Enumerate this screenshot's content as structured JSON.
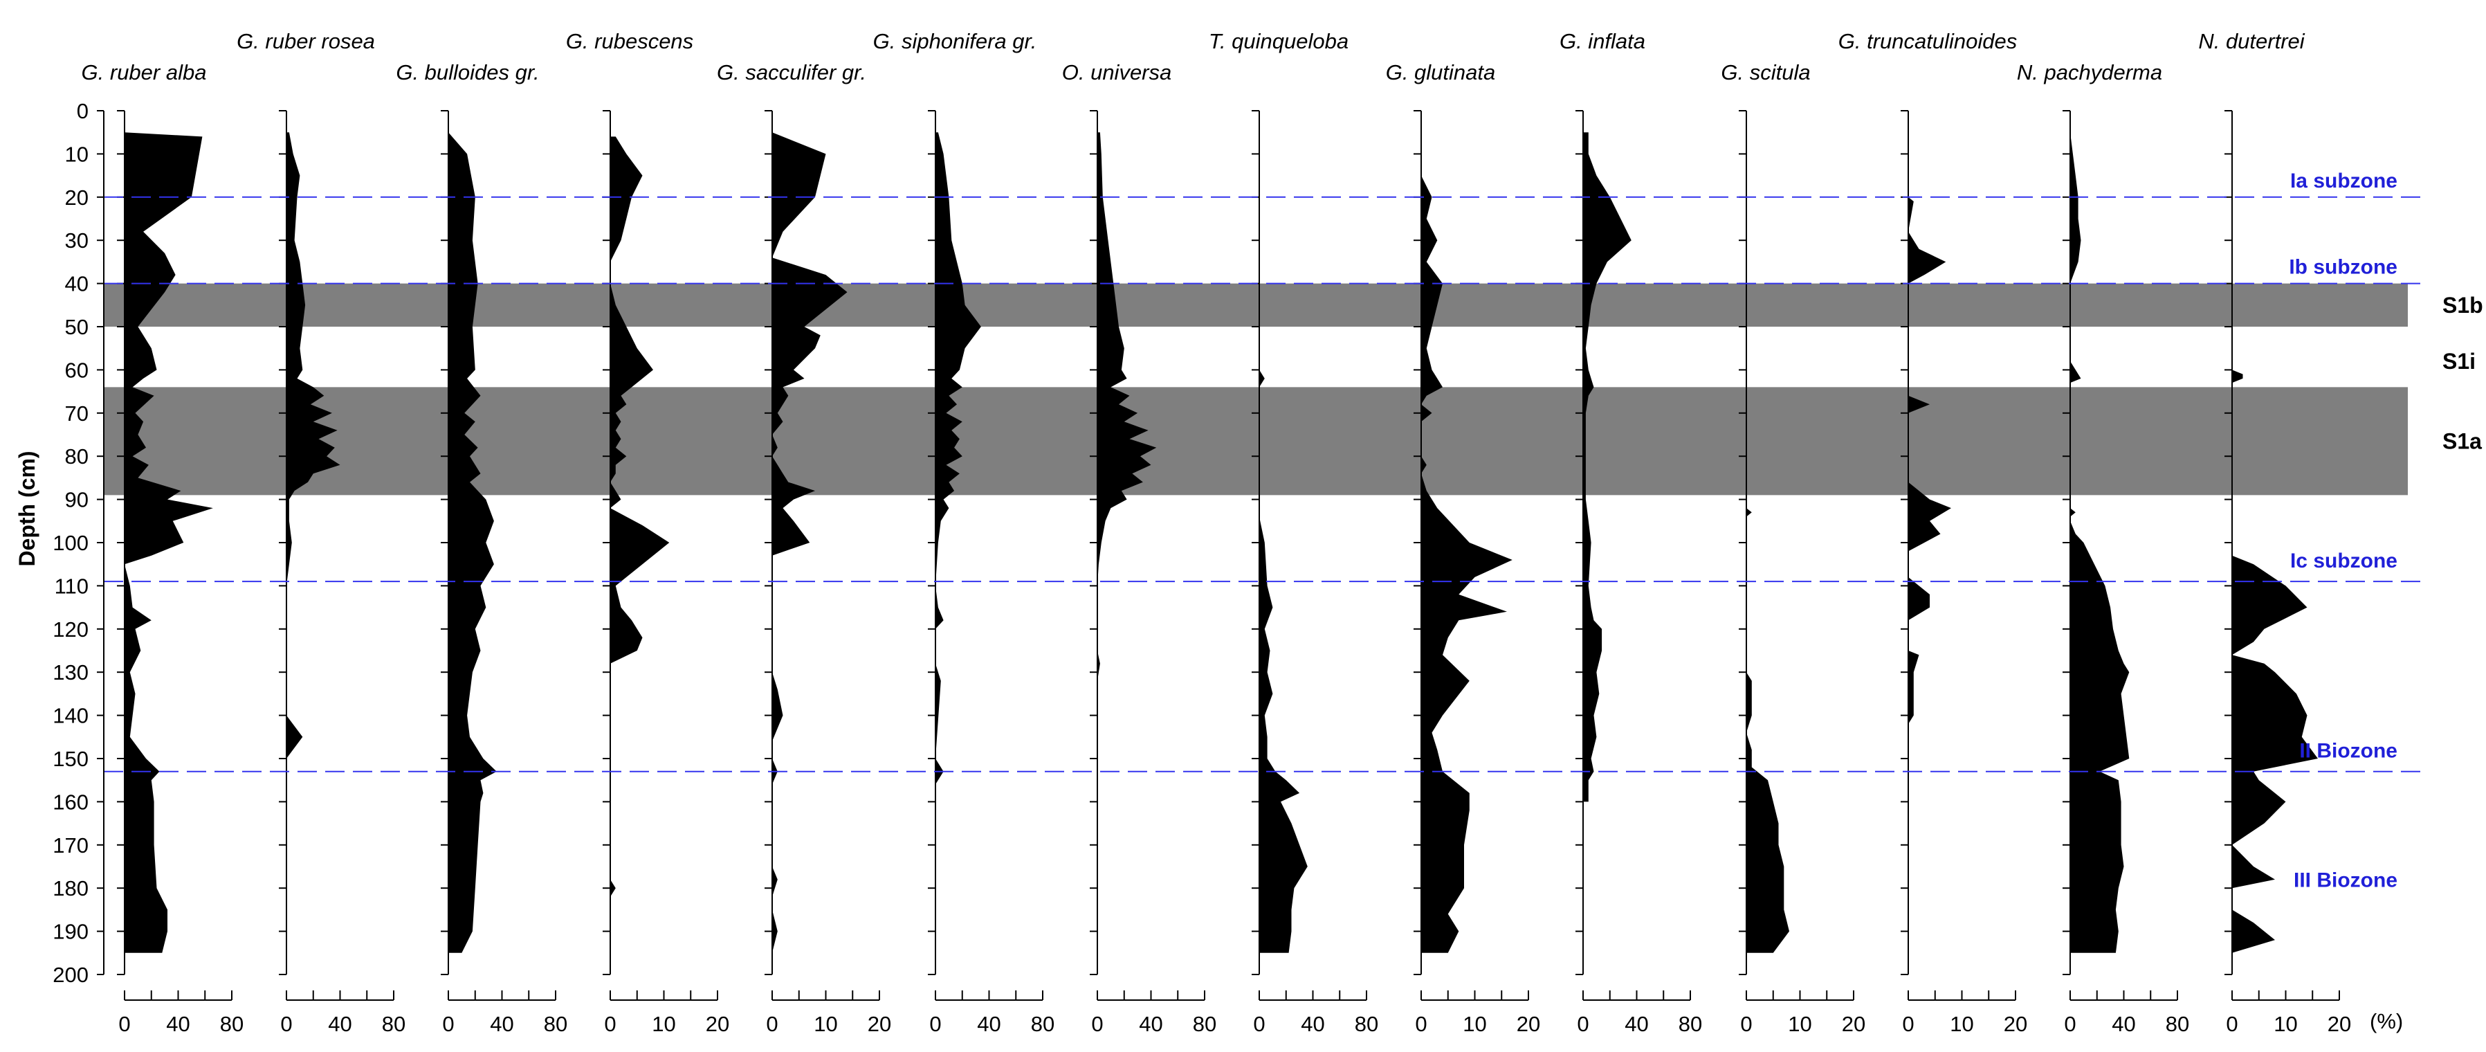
{
  "chart_data": {
    "type": "area",
    "title": "",
    "ylabel": "Depth (cm)",
    "ylim": [
      0,
      200
    ],
    "yticks": [
      "0",
      "10",
      "20",
      "30",
      "40",
      "50",
      "60",
      "70",
      "80",
      "90",
      "100",
      "110",
      "120",
      "130",
      "140",
      "150",
      "160",
      "170",
      "180",
      "190",
      "200"
    ],
    "unit_label": "(%)",
    "colors": {
      "fill": "#000000",
      "sapropel": "#7f7f7f",
      "zone_line": "#3333ee",
      "zone_text": "#2020d8"
    },
    "sapropel_bands": [
      {
        "name": "S1b",
        "from": 40,
        "to": 50
      },
      {
        "name": "S1a",
        "from": 64,
        "to": 89
      }
    ],
    "unshaded_labels": [
      {
        "name": "S1i",
        "depth": 58
      }
    ],
    "zone_boundaries": [
      20,
      40,
      109,
      153
    ],
    "zone_labels": [
      {
        "name": "Ia subzone",
        "depth": 16
      },
      {
        "name": "Ib subzone",
        "depth": 36
      },
      {
        "name": "Ic subzone",
        "depth": 104
      },
      {
        "name": "II Biozone",
        "depth": 148
      },
      {
        "name": "III Biozone",
        "depth": 178
      }
    ],
    "panels": [
      {
        "species": "G. ruber alba",
        "row": 2,
        "xmax": 80,
        "xticks": [
          "0",
          "40",
          "80"
        ],
        "depth": [
          5,
          6,
          20,
          28,
          33,
          38,
          42,
          50,
          55,
          60,
          62,
          64,
          66,
          70,
          72,
          75,
          78,
          80,
          82,
          85,
          88,
          90,
          92,
          95,
          100,
          103,
          105,
          110,
          115,
          118,
          120,
          125,
          130,
          135,
          145,
          150,
          153,
          155,
          160,
          170,
          180,
          185,
          190,
          195
        ],
        "values": [
          0,
          58,
          50,
          14,
          30,
          38,
          30,
          10,
          20,
          24,
          14,
          6,
          22,
          8,
          14,
          10,
          16,
          6,
          18,
          10,
          42,
          32,
          66,
          36,
          44,
          20,
          0,
          4,
          6,
          20,
          8,
          12,
          4,
          8,
          4,
          16,
          26,
          20,
          22,
          22,
          24,
          32,
          32,
          28
        ]
      },
      {
        "species": "G. ruber rosea",
        "row": 1,
        "xmax": 80,
        "xticks": [
          "0",
          "40",
          "80"
        ],
        "depth": [
          5,
          10,
          15,
          20,
          30,
          35,
          40,
          45,
          50,
          55,
          60,
          62,
          64,
          66,
          68,
          70,
          72,
          74,
          76,
          78,
          80,
          82,
          84,
          86,
          88,
          90,
          95,
          100,
          105,
          110,
          140,
          145,
          150
        ],
        "values": [
          2,
          5,
          10,
          8,
          6,
          10,
          12,
          14,
          12,
          10,
          12,
          8,
          20,
          28,
          18,
          34,
          20,
          38,
          24,
          36,
          30,
          40,
          20,
          16,
          6,
          2,
          2,
          4,
          2,
          0,
          0,
          12,
          0
        ]
      },
      {
        "species": "G. bulloides gr.",
        "row": 2,
        "xmax": 80,
        "xticks": [
          "0",
          "40",
          "80"
        ],
        "depth": [
          5,
          10,
          20,
          30,
          40,
          50,
          60,
          62,
          66,
          70,
          72,
          75,
          78,
          80,
          84,
          86,
          88,
          90,
          95,
          100,
          105,
          110,
          115,
          120,
          125,
          130,
          140,
          145,
          150,
          153,
          155,
          158,
          160,
          170,
          180,
          190,
          195
        ],
        "values": [
          0,
          14,
          20,
          18,
          22,
          18,
          20,
          14,
          24,
          12,
          20,
          12,
          22,
          16,
          24,
          16,
          22,
          28,
          34,
          28,
          34,
          24,
          28,
          20,
          24,
          18,
          14,
          16,
          26,
          36,
          24,
          26,
          24,
          22,
          20,
          18,
          10
        ]
      },
      {
        "species": "G. rubescens",
        "row": 1,
        "xmax": 20,
        "xticks": [
          "0",
          "10",
          "20"
        ],
        "depth": [
          6,
          10,
          15,
          20,
          25,
          30,
          35,
          40,
          45,
          50,
          55,
          60,
          62,
          64,
          66,
          68,
          70,
          72,
          74,
          76,
          78,
          80,
          82,
          84,
          86,
          88,
          90,
          92,
          94,
          96,
          100,
          105,
          110,
          115,
          118,
          122,
          125,
          128,
          130,
          178,
          180,
          182
        ],
        "values": [
          1,
          3,
          6,
          4,
          3,
          2,
          0,
          0,
          1,
          3,
          5,
          8,
          6,
          4,
          2,
          3,
          1,
          2,
          1,
          2,
          1,
          3,
          1,
          1,
          0,
          1,
          2,
          0,
          3,
          6,
          11,
          6,
          1,
          2,
          4,
          6,
          5,
          0,
          0,
          0,
          1,
          0
        ]
      },
      {
        "species": "G. sacculifer gr.",
        "row": 2,
        "xmax": 20,
        "xticks": [
          "0",
          "10",
          "20"
        ],
        "depth": [
          5,
          10,
          20,
          28,
          34,
          38,
          42,
          48,
          50,
          52,
          55,
          60,
          62,
          64,
          66,
          70,
          72,
          75,
          78,
          80,
          82,
          84,
          86,
          88,
          90,
          92,
          95,
          100,
          103,
          106,
          130,
          134,
          140,
          146,
          150,
          153,
          156,
          175,
          178,
          182,
          185,
          190,
          195
        ],
        "values": [
          0,
          10,
          8,
          2,
          0,
          10,
          14,
          8,
          6,
          9,
          8,
          4,
          6,
          2,
          3,
          1,
          2,
          0,
          1,
          0,
          1,
          2,
          3,
          8,
          4,
          2,
          4,
          7,
          0,
          0,
          0,
          1,
          2,
          0,
          0,
          1,
          0,
          0,
          1,
          0,
          0,
          1,
          0
        ]
      },
      {
        "species": "G. siphonifera gr.",
        "row": 1,
        "xmax": 80,
        "xticks": [
          "0",
          "40",
          "80"
        ],
        "depth": [
          5,
          10,
          20,
          30,
          35,
          40,
          45,
          50,
          55,
          60,
          62,
          64,
          66,
          68,
          70,
          72,
          74,
          76,
          78,
          80,
          82,
          84,
          86,
          88,
          90,
          92,
          95,
          100,
          110,
          115,
          118,
          120,
          128,
          132,
          150,
          153,
          156
        ],
        "values": [
          2,
          6,
          10,
          12,
          16,
          20,
          22,
          34,
          22,
          18,
          12,
          20,
          10,
          16,
          8,
          20,
          12,
          18,
          14,
          20,
          8,
          18,
          10,
          14,
          6,
          10,
          4,
          2,
          0,
          2,
          6,
          0,
          0,
          4,
          0,
          6,
          0
        ]
      },
      {
        "species": "O. universa",
        "row": 2,
        "xmax": 80,
        "xticks": [
          "0",
          "40",
          "80"
        ],
        "depth": [
          5,
          10,
          20,
          30,
          40,
          50,
          55,
          60,
          62,
          64,
          66,
          68,
          70,
          72,
          74,
          76,
          78,
          80,
          82,
          84,
          86,
          88,
          90,
          92,
          95,
          100,
          105,
          110,
          125,
          128,
          132
        ],
        "values": [
          2,
          3,
          4,
          8,
          12,
          16,
          20,
          18,
          22,
          10,
          24,
          16,
          30,
          20,
          38,
          24,
          44,
          32,
          40,
          26,
          34,
          18,
          22,
          10,
          6,
          3,
          1,
          0,
          0,
          2,
          0
        ]
      },
      {
        "species": "T. quinqueloba",
        "row": 1,
        "xmax": 80,
        "xticks": [
          "0",
          "40",
          "80"
        ],
        "depth": [
          60,
          62,
          64,
          94,
          100,
          110,
          115,
          120,
          125,
          130,
          135,
          140,
          145,
          150,
          153,
          155,
          158,
          160,
          165,
          170,
          175,
          180,
          185,
          190,
          195
        ],
        "values": [
          0,
          4,
          0,
          0,
          4,
          6,
          10,
          4,
          8,
          6,
          10,
          4,
          6,
          6,
          12,
          20,
          30,
          16,
          24,
          30,
          36,
          26,
          24,
          24,
          22
        ]
      },
      {
        "species": "G. glutinata",
        "row": 2,
        "xmax": 20,
        "xticks": [
          "0",
          "10",
          "20"
        ],
        "depth": [
          15,
          20,
          25,
          30,
          35,
          40,
          45,
          50,
          55,
          60,
          62,
          64,
          66,
          68,
          70,
          72,
          80,
          82,
          84,
          88,
          92,
          96,
          100,
          104,
          108,
          112,
          116,
          118,
          122,
          126,
          132,
          140,
          144,
          148,
          153,
          158,
          162,
          170,
          180,
          186,
          190,
          195
        ],
        "values": [
          0,
          2,
          1,
          3,
          1,
          4,
          3,
          2,
          1,
          2,
          3,
          4,
          1,
          0,
          2,
          0,
          0,
          1,
          0,
          1,
          3,
          6,
          9,
          17,
          10,
          7,
          16,
          7,
          5,
          4,
          9,
          4,
          2,
          3,
          4,
          9,
          9,
          8,
          8,
          5,
          7,
          5
        ]
      },
      {
        "species": "G. inflata",
        "row": 1,
        "xmax": 80,
        "xticks": [
          "0",
          "40",
          "80"
        ],
        "depth": [
          5,
          10,
          15,
          20,
          25,
          30,
          35,
          40,
          45,
          50,
          55,
          60,
          62,
          64,
          66,
          70,
          75,
          80,
          85,
          90,
          95,
          100,
          110,
          115,
          118,
          120,
          125,
          130,
          135,
          140,
          145,
          150,
          153,
          155,
          160
        ],
        "values": [
          4,
          4,
          10,
          20,
          28,
          36,
          18,
          10,
          6,
          4,
          2,
          4,
          6,
          8,
          4,
          2,
          2,
          2,
          2,
          2,
          4,
          6,
          4,
          6,
          8,
          14,
          14,
          10,
          12,
          8,
          10,
          6,
          8,
          4,
          4
        ]
      },
      {
        "species": "G. scitula",
        "row": 2,
        "xmax": 20,
        "xticks": [
          "0",
          "10",
          "20"
        ],
        "depth": [
          92,
          93,
          94,
          130,
          132,
          140,
          144,
          148,
          150,
          152,
          155,
          160,
          165,
          170,
          175,
          180,
          185,
          190,
          195
        ],
        "values": [
          0,
          1,
          0,
          0,
          1,
          1,
          0,
          1,
          1,
          1,
          4,
          5,
          6,
          6,
          7,
          7,
          7,
          8,
          5
        ]
      },
      {
        "species": "G. truncatulinoides",
        "row": 1,
        "xmax": 20,
        "xticks": [
          "0",
          "10",
          "20"
        ],
        "depth": [
          20,
          21,
          28,
          32,
          35,
          38,
          40,
          66,
          68,
          70,
          86,
          88,
          90,
          92,
          95,
          98,
          100,
          102,
          108,
          110,
          112,
          115,
          118,
          125,
          126,
          130,
          135,
          140,
          142
        ],
        "values": [
          0,
          1,
          0,
          2,
          7,
          3,
          0,
          0,
          4,
          0,
          0,
          2,
          4,
          8,
          4,
          6,
          3,
          0,
          0,
          2,
          4,
          4,
          0,
          0,
          2,
          1,
          1,
          1,
          0
        ]
      },
      {
        "species": "N. pachyderma",
        "row": 2,
        "xmax": 80,
        "xticks": [
          "0",
          "40",
          "80"
        ],
        "depth": [
          5,
          10,
          15,
          20,
          25,
          30,
          35,
          40,
          58,
          60,
          62,
          63,
          92,
          93,
          94,
          95,
          98,
          100,
          105,
          110,
          115,
          120,
          125,
          128,
          130,
          135,
          140,
          145,
          150,
          153,
          155,
          160,
          165,
          170,
          175,
          180,
          185,
          190,
          195
        ],
        "values": [
          0,
          2,
          4,
          6,
          6,
          8,
          6,
          0,
          0,
          4,
          8,
          0,
          0,
          4,
          0,
          0,
          4,
          10,
          18,
          26,
          30,
          32,
          36,
          40,
          44,
          38,
          40,
          42,
          44,
          22,
          36,
          38,
          38,
          38,
          40,
          36,
          34,
          36,
          34
        ]
      },
      {
        "species": "N. dutertrei",
        "row": 1,
        "xmax": 20,
        "xticks": [
          "0",
          "10",
          "20"
        ],
        "depth": [
          60,
          61,
          62,
          63,
          103,
          105,
          110,
          115,
          120,
          123,
          126,
          128,
          130,
          135,
          140,
          145,
          150,
          153,
          155,
          160,
          165,
          170,
          175,
          178,
          180,
          185,
          188,
          192,
          195
        ],
        "values": [
          0,
          2,
          2,
          0,
          0,
          4,
          10,
          14,
          6,
          4,
          0,
          6,
          8,
          12,
          14,
          13,
          16,
          4,
          5,
          10,
          6,
          0,
          4,
          8,
          0,
          0,
          4,
          8,
          0
        ]
      }
    ]
  }
}
